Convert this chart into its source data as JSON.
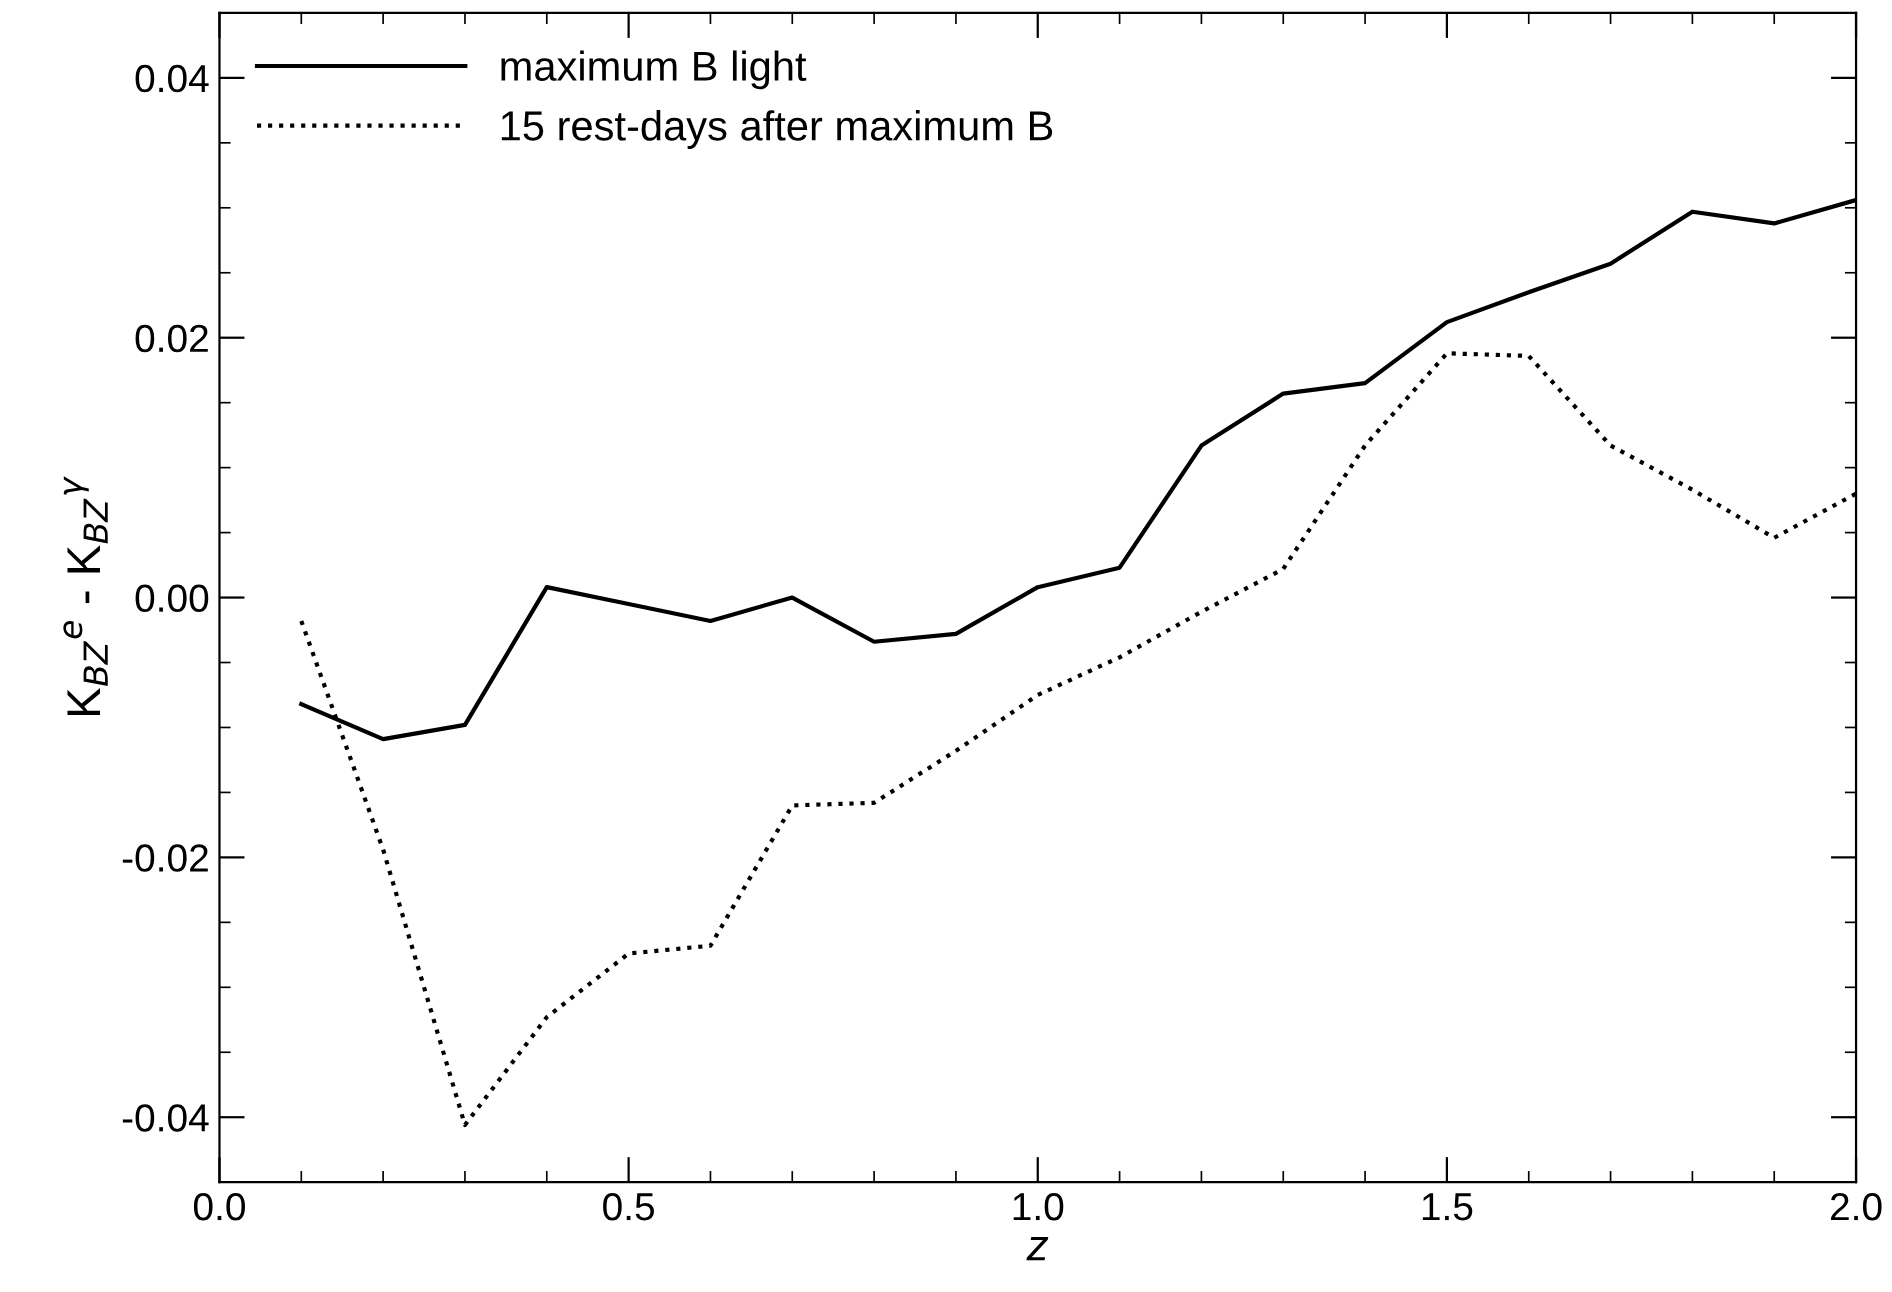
{
  "chart_data": {
    "type": "line",
    "xlabel": "z",
    "ylabel": "K$_{BZ}$$^{e}$ - K$_{BZ}$$^{γ}$",
    "x": [
      0.1,
      0.2,
      0.3,
      0.4,
      0.5,
      0.6,
      0.7,
      0.8,
      0.9,
      1.0,
      1.1,
      1.2,
      1.3,
      1.4,
      1.5,
      1.6,
      1.7,
      1.8,
      1.9,
      2.0
    ],
    "series": [
      {
        "name": "maximum B light",
        "color": "#000000",
        "line_style": "solid",
        "values": [
          -0.0082,
          -0.0109,
          -0.0098,
          0.0008,
          -0.0005,
          -0.0018,
          0.0,
          -0.0034,
          -0.0028,
          0.0008,
          0.0023,
          0.0117,
          0.0157,
          0.0165,
          0.0212,
          0.0235,
          0.0257,
          0.0297,
          0.0288,
          0.0306
        ]
      },
      {
        "name": "15 rest-days after maximum B",
        "color": "#000000",
        "line_style": "dotted",
        "values": [
          -0.0018,
          -0.0194,
          -0.0406,
          -0.0323,
          -0.0274,
          -0.0268,
          -0.016,
          -0.0158,
          -0.0118,
          -0.0075,
          -0.0046,
          -0.0011,
          0.0022,
          0.0117,
          0.0188,
          0.0186,
          0.0117,
          0.0083,
          0.0046,
          0.008
        ]
      }
    ],
    "xlim": [
      0.0,
      2.0
    ],
    "ylim": [
      -0.045,
      0.045
    ],
    "xticks": [
      {
        "value": 0.0,
        "label": "0.0"
      },
      0.5,
      {
        "value": 1.0,
        "label": "1.0"
      },
      1.5,
      {
        "value": 2.0,
        "label": "2.0"
      }
    ],
    "yticks": [
      {
        "value": -0.04,
        "label": "-0.04"
      },
      {
        "value": -0.02,
        "label": "-0.02"
      },
      {
        "value": 0.0,
        "label": "0.00"
      },
      {
        "value": 0.02,
        "label": "0.02"
      },
      {
        "value": 0.04,
        "label": "0.04"
      }
    ],
    "legend": "top left",
    "grid": false,
    "marker": "none"
  }
}
